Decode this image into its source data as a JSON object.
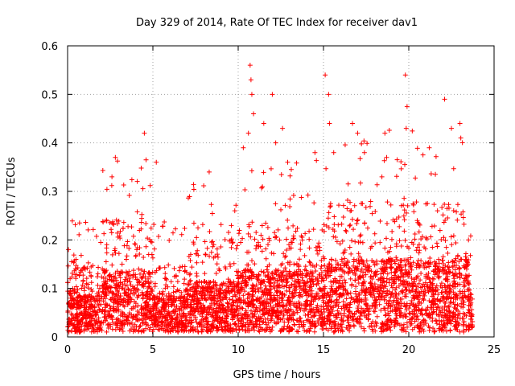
{
  "chart_data": {
    "type": "scatter",
    "title": "Day 329 of 2014, Rate Of TEC Index for receiver dav1",
    "xlabel": "GPS time / hours",
    "ylabel": "ROTI / TECUs",
    "xlim": [
      0,
      25
    ],
    "ylim": [
      0,
      0.6
    ],
    "xticks": [
      0,
      5,
      10,
      15,
      20,
      25
    ],
    "yticks": [
      0,
      0.1,
      0.2,
      0.3,
      0.4,
      0.5,
      0.6
    ],
    "xtick_labels": [
      "0",
      "5",
      "10",
      "15",
      "20",
      "25"
    ],
    "ytick_labels": [
      "0",
      "0.1",
      "0.2",
      "0.3",
      "0.4",
      "0.5",
      "0.6"
    ],
    "grid": true,
    "marker": "+",
    "color": "#ff0000",
    "series": [
      {
        "name": "ROTI",
        "x_range": [
          0,
          23.75
        ],
        "envelope_note": "dense cloud; typical values 0.01-0.15, frequent spikes 0.2-0.35",
        "notable_points": [
          {
            "x": 0.05,
            "y": 0.18
          },
          {
            "x": 0.7,
            "y": 0.235
          },
          {
            "x": 2.6,
            "y": 0.33
          },
          {
            "x": 2.8,
            "y": 0.37
          },
          {
            "x": 4.5,
            "y": 0.42
          },
          {
            "x": 4.6,
            "y": 0.365
          },
          {
            "x": 5.2,
            "y": 0.36
          },
          {
            "x": 8.3,
            "y": 0.34
          },
          {
            "x": 9.8,
            "y": 0.26
          },
          {
            "x": 10.3,
            "y": 0.39
          },
          {
            "x": 10.6,
            "y": 0.42
          },
          {
            "x": 10.7,
            "y": 0.56
          },
          {
            "x": 10.75,
            "y": 0.53
          },
          {
            "x": 10.8,
            "y": 0.5
          },
          {
            "x": 10.9,
            "y": 0.46
          },
          {
            "x": 11.5,
            "y": 0.44
          },
          {
            "x": 12.0,
            "y": 0.5
          },
          {
            "x": 12.2,
            "y": 0.4
          },
          {
            "x": 12.6,
            "y": 0.43
          },
          {
            "x": 12.9,
            "y": 0.36
          },
          {
            "x": 14.5,
            "y": 0.38
          },
          {
            "x": 15.1,
            "y": 0.54
          },
          {
            "x": 15.3,
            "y": 0.5
          },
          {
            "x": 15.35,
            "y": 0.44
          },
          {
            "x": 15.6,
            "y": 0.38
          },
          {
            "x": 16.7,
            "y": 0.44
          },
          {
            "x": 17.0,
            "y": 0.42
          },
          {
            "x": 17.4,
            "y": 0.38
          },
          {
            "x": 18.6,
            "y": 0.42
          },
          {
            "x": 18.7,
            "y": 0.37
          },
          {
            "x": 19.8,
            "y": 0.54
          },
          {
            "x": 19.85,
            "y": 0.43
          },
          {
            "x": 19.9,
            "y": 0.475
          },
          {
            "x": 21.2,
            "y": 0.39
          },
          {
            "x": 22.1,
            "y": 0.49
          },
          {
            "x": 22.5,
            "y": 0.43
          },
          {
            "x": 23.0,
            "y": 0.44
          },
          {
            "x": 23.05,
            "y": 0.41
          },
          {
            "x": 23.5,
            "y": 0.2
          },
          {
            "x": 15.6,
            "y": 0.01
          }
        ]
      }
    ]
  }
}
